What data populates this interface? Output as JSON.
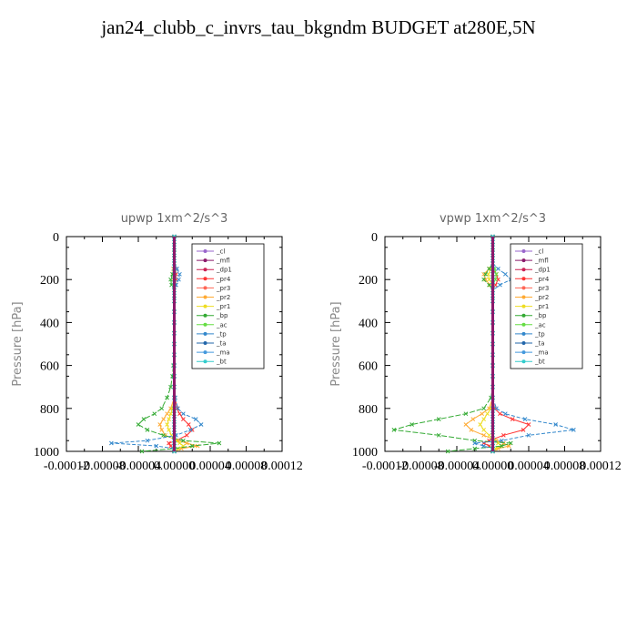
{
  "title": "jan24_clubb_c_invrs_tau_bkgndm  BUDGET at280E,5N",
  "chart_data": [
    {
      "type": "line",
      "title": "upwp   1xm^2/s^3",
      "ylabel": "Pressure [hPa]",
      "xlabel": "",
      "yticks": [
        "0",
        "200",
        "400",
        "600",
        "800",
        "1000"
      ],
      "xticks": [
        "-0.00012",
        "-0.00008",
        "-0.00004",
        "0.00000",
        "0.00004",
        "0.00008",
        "0.00012"
      ],
      "xlim": [
        -0.00012,
        0.00012
      ],
      "ylim": [
        1000,
        0
      ],
      "legend": "top-right",
      "levels": [
        0,
        25,
        50,
        75,
        100,
        125,
        150,
        175,
        200,
        225,
        250,
        275,
        300,
        350,
        400,
        450,
        500,
        550,
        600,
        650,
        700,
        750,
        800,
        825,
        850,
        875,
        900,
        925,
        950,
        962,
        975,
        987,
        1000
      ],
      "series": [
        {
          "name": "_cl",
          "color": "#9966cc",
          "values": [
            0,
            0,
            0,
            0,
            0,
            0,
            0,
            0,
            0,
            0,
            0,
            0,
            0,
            0,
            0,
            0,
            0,
            0,
            0,
            0,
            0,
            0,
            0,
            0,
            0,
            0,
            0,
            0,
            0,
            0,
            0,
            0,
            0
          ]
        },
        {
          "name": "_mfl",
          "color": "#8b1a6b",
          "values": [
            0,
            0,
            0,
            0,
            0,
            0,
            0,
            0,
            0,
            0,
            0,
            0,
            0,
            0,
            0,
            0,
            0,
            0,
            0,
            0,
            0,
            0,
            0,
            0,
            0,
            0,
            0,
            0,
            0,
            0,
            0,
            0,
            0
          ]
        },
        {
          "name": "_dp1",
          "color": "#cc2255",
          "values": [
            0,
            0,
            0,
            0,
            0,
            0,
            0,
            0,
            0,
            0,
            0,
            0,
            0,
            0,
            0,
            0,
            0,
            0,
            0,
            0,
            0,
            0,
            0,
            0,
            0,
            0,
            0,
            0,
            0,
            0,
            0,
            0,
            0
          ]
        },
        {
          "name": "_pr4",
          "color": "#ff3333",
          "values": [
            0,
            0,
            0,
            0,
            0,
            0,
            1e-06,
            2e-06,
            2e-06,
            1e-06,
            0,
            0,
            0,
            0,
            0,
            0,
            0,
            0,
            0,
            0,
            0,
            1e-06,
            3e-06,
            6e-06,
            1e-05,
            1.6e-05,
            2e-05,
            1.4e-05,
            2e-06,
            -6e-06,
            -4e-06,
            0,
            0
          ]
        },
        {
          "name": "_pr3",
          "color": "#ff6655",
          "values": [
            0,
            0,
            0,
            0,
            0,
            0,
            0,
            0,
            0,
            0,
            0,
            0,
            0,
            0,
            0,
            0,
            0,
            0,
            0,
            0,
            0,
            0,
            0,
            0,
            0,
            0,
            0,
            0,
            0,
            0,
            0,
            0,
            0
          ]
        },
        {
          "name": "_pr2",
          "color": "#ffaa33",
          "values": [
            0,
            0,
            0,
            0,
            0,
            0,
            -1e-06,
            -2e-06,
            -1e-06,
            0,
            0,
            0,
            0,
            0,
            0,
            0,
            0,
            0,
            0,
            0,
            0,
            0,
            -4e-06,
            -8e-06,
            -1.2e-05,
            -1.6e-05,
            -1.4e-05,
            -1e-05,
            4e-06,
            1.4e-05,
            2.6e-05,
            8e-06,
            0
          ]
        },
        {
          "name": "_pr1",
          "color": "#eedd22",
          "values": [
            0,
            0,
            0,
            0,
            0,
            0,
            0,
            0,
            0,
            0,
            0,
            0,
            0,
            0,
            0,
            0,
            0,
            0,
            0,
            0,
            0,
            0,
            -2e-06,
            -4e-06,
            -6e-06,
            -8e-06,
            -6e-06,
            -3e-06,
            2e-06,
            6e-06,
            1e-05,
            4e-06,
            0
          ]
        },
        {
          "name": "_bp",
          "color": "#33aa33",
          "values": [
            0,
            0,
            0,
            0,
            0,
            0,
            0,
            -2e-06,
            -4e-06,
            -3e-06,
            0,
            0,
            0,
            0,
            0,
            0,
            0,
            0,
            -1e-06,
            -2e-06,
            -4e-06,
            -8e-06,
            -1.4e-05,
            -2.2e-05,
            -3.4e-05,
            -4e-05,
            -3e-05,
            -1.2e-05,
            1e-05,
            5e-05,
            2e-05,
            0,
            -3.6e-05
          ]
        },
        {
          "name": "_ac",
          "color": "#66dd44",
          "values": [
            0,
            0,
            0,
            0,
            0,
            0,
            0,
            0,
            0,
            0,
            0,
            0,
            0,
            0,
            0,
            0,
            0,
            0,
            0,
            0,
            0,
            0,
            0,
            0,
            0,
            0,
            0,
            0,
            0,
            0,
            0,
            0,
            0
          ]
        },
        {
          "name": "_tp",
          "color": "#3388cc",
          "values": [
            0,
            0,
            0,
            0,
            0,
            0,
            3e-06,
            6e-06,
            5e-06,
            2e-06,
            0,
            0,
            0,
            0,
            0,
            0,
            0,
            0,
            0,
            0,
            0,
            1e-06,
            4e-06,
            1e-05,
            2.4e-05,
            3e-05,
            1.8e-05,
            2e-06,
            -3e-05,
            -7e-05,
            -2e-05,
            0,
            0
          ]
        },
        {
          "name": "_ta",
          "color": "#2266aa",
          "values": [
            0,
            0,
            0,
            0,
            0,
            0,
            0,
            0,
            0,
            0,
            0,
            0,
            0,
            0,
            0,
            0,
            0,
            0,
            0,
            0,
            0,
            0,
            0,
            0,
            0,
            0,
            0,
            0,
            0,
            0,
            0,
            0,
            0
          ]
        },
        {
          "name": "_ma",
          "color": "#4499dd",
          "values": [
            0,
            0,
            0,
            0,
            0,
            0,
            0,
            0,
            0,
            0,
            0,
            0,
            0,
            0,
            0,
            0,
            0,
            0,
            0,
            0,
            0,
            0,
            0,
            0,
            0,
            0,
            0,
            0,
            0,
            0,
            0,
            0,
            0
          ]
        },
        {
          "name": "_bt",
          "color": "#33cccc",
          "values": [
            0,
            0,
            0,
            0,
            0,
            0,
            0,
            0,
            0,
            0,
            0,
            0,
            0,
            0,
            0,
            0,
            0,
            0,
            0,
            0,
            0,
            0,
            0,
            0,
            0,
            0,
            0,
            0,
            0,
            0,
            0,
            0,
            0
          ]
        }
      ]
    },
    {
      "type": "line",
      "title": "vpwp   1xm^2/s^3",
      "ylabel": "Pressure [hPa]",
      "xlabel": "",
      "yticks": [
        "0",
        "200",
        "400",
        "600",
        "800",
        "1000"
      ],
      "xticks": [
        "-0.00012",
        "-0.00008",
        "-0.00004",
        "0.00000",
        "0.00004",
        "0.00008",
        "0.00012"
      ],
      "xlim": [
        -0.00012,
        0.00012
      ],
      "ylim": [
        1000,
        0
      ],
      "legend": "top-right",
      "levels": [
        0,
        25,
        50,
        75,
        100,
        125,
        150,
        175,
        200,
        225,
        250,
        275,
        300,
        350,
        400,
        450,
        500,
        550,
        600,
        650,
        700,
        750,
        800,
        825,
        850,
        875,
        900,
        925,
        950,
        962,
        975,
        987,
        1000
      ],
      "series": [
        {
          "name": "_cl",
          "color": "#9966cc",
          "values": [
            0,
            0,
            0,
            0,
            0,
            0,
            0,
            0,
            0,
            0,
            0,
            0,
            0,
            0,
            0,
            0,
            0,
            0,
            0,
            0,
            0,
            0,
            0,
            0,
            0,
            0,
            0,
            0,
            0,
            0,
            0,
            0,
            0
          ]
        },
        {
          "name": "_mfl",
          "color": "#8b1a6b",
          "values": [
            0,
            0,
            0,
            0,
            0,
            0,
            0,
            0,
            0,
            0,
            0,
            0,
            0,
            0,
            0,
            0,
            0,
            0,
            0,
            0,
            0,
            0,
            0,
            0,
            0,
            0,
            0,
            0,
            0,
            0,
            0,
            0,
            0
          ]
        },
        {
          "name": "_dp1",
          "color": "#cc2255",
          "values": [
            0,
            0,
            0,
            0,
            0,
            0,
            0,
            0,
            0,
            0,
            0,
            0,
            0,
            0,
            0,
            0,
            0,
            0,
            0,
            0,
            0,
            0,
            0,
            0,
            0,
            0,
            0,
            0,
            0,
            0,
            0,
            0,
            0
          ]
        },
        {
          "name": "_pr4",
          "color": "#ff3333",
          "values": [
            0,
            0,
            0,
            0,
            0,
            0,
            0,
            4e-06,
            6e-06,
            3e-06,
            0,
            0,
            0,
            0,
            0,
            0,
            0,
            0,
            0,
            0,
            0,
            0,
            2e-06,
            8e-06,
            2.2e-05,
            4e-05,
            3.4e-05,
            1.2e-05,
            -4e-06,
            -1e-05,
            -4e-06,
            0,
            0
          ]
        },
        {
          "name": "_pr3",
          "color": "#ff6655",
          "values": [
            0,
            0,
            0,
            0,
            0,
            0,
            0,
            0,
            0,
            0,
            0,
            0,
            0,
            0,
            0,
            0,
            0,
            0,
            0,
            0,
            0,
            0,
            0,
            0,
            0,
            0,
            0,
            0,
            0,
            0,
            0,
            0,
            0
          ]
        },
        {
          "name": "_pr2",
          "color": "#ffaa33",
          "values": [
            0,
            0,
            0,
            0,
            0,
            0,
            -4e-06,
            -1e-05,
            -8e-06,
            -3e-06,
            0,
            0,
            0,
            0,
            0,
            0,
            0,
            0,
            0,
            0,
            0,
            0,
            -4e-06,
            -1.2e-05,
            -2.2e-05,
            -3e-05,
            -2.4e-05,
            -1e-05,
            4e-06,
            1.2e-05,
            1.8e-05,
            6e-06,
            0
          ]
        },
        {
          "name": "_pr1",
          "color": "#eedd22",
          "values": [
            0,
            0,
            0,
            0,
            0,
            0,
            -2e-06,
            -5e-06,
            -4e-06,
            0,
            0,
            0,
            0,
            0,
            0,
            0,
            0,
            0,
            0,
            0,
            0,
            0,
            -2e-06,
            -6e-06,
            -1e-05,
            -1.4e-05,
            -1e-05,
            -4e-06,
            2e-06,
            6e-06,
            1e-05,
            3e-06,
            0
          ]
        },
        {
          "name": "_bp",
          "color": "#33aa33",
          "values": [
            0,
            0,
            0,
            0,
            0,
            0,
            -4e-06,
            -8e-06,
            -1e-05,
            -4e-06,
            0,
            0,
            0,
            0,
            0,
            0,
            0,
            0,
            0,
            0,
            0,
            -2e-06,
            -1e-05,
            -3e-05,
            -6e-05,
            -9e-05,
            -0.00011,
            -6e-05,
            -2e-05,
            2e-05,
            1e-05,
            -2e-05,
            -5e-05
          ]
        },
        {
          "name": "_ac",
          "color": "#66dd44",
          "values": [
            0,
            0,
            0,
            0,
            0,
            0,
            2e-06,
            4e-06,
            3e-06,
            0,
            0,
            0,
            0,
            0,
            0,
            0,
            0,
            0,
            0,
            0,
            0,
            0,
            0,
            0,
            0,
            0,
            0,
            0,
            0,
            0,
            0,
            0,
            0
          ]
        },
        {
          "name": "_tp",
          "color": "#3388cc",
          "values": [
            0,
            0,
            0,
            0,
            0,
            0,
            6e-06,
            1.4e-05,
            2e-05,
            8e-06,
            0,
            0,
            0,
            0,
            0,
            0,
            0,
            0,
            0,
            0,
            0,
            0,
            4e-06,
            1.4e-05,
            3.6e-05,
            7e-05,
            9e-05,
            4e-05,
            1e-05,
            -2e-05,
            -1e-05,
            0,
            0
          ]
        },
        {
          "name": "_ta",
          "color": "#2266aa",
          "values": [
            0,
            0,
            0,
            0,
            0,
            0,
            0,
            0,
            0,
            0,
            0,
            0,
            0,
            0,
            0,
            0,
            0,
            0,
            0,
            0,
            0,
            0,
            0,
            0,
            0,
            0,
            0,
            0,
            0,
            0,
            0,
            0,
            0
          ]
        },
        {
          "name": "_ma",
          "color": "#4499dd",
          "values": [
            0,
            0,
            0,
            0,
            0,
            0,
            0,
            0,
            0,
            0,
            0,
            0,
            0,
            0,
            0,
            0,
            0,
            0,
            0,
            0,
            0,
            0,
            0,
            0,
            0,
            0,
            0,
            0,
            0,
            0,
            0,
            0,
            0
          ]
        },
        {
          "name": "_bt",
          "color": "#33cccc",
          "values": [
            0,
            0,
            0,
            0,
            0,
            0,
            0,
            0,
            0,
            0,
            0,
            0,
            0,
            0,
            0,
            0,
            0,
            0,
            0,
            0,
            0,
            0,
            0,
            0,
            0,
            0,
            0,
            0,
            0,
            0,
            0,
            0,
            0
          ]
        }
      ]
    }
  ]
}
